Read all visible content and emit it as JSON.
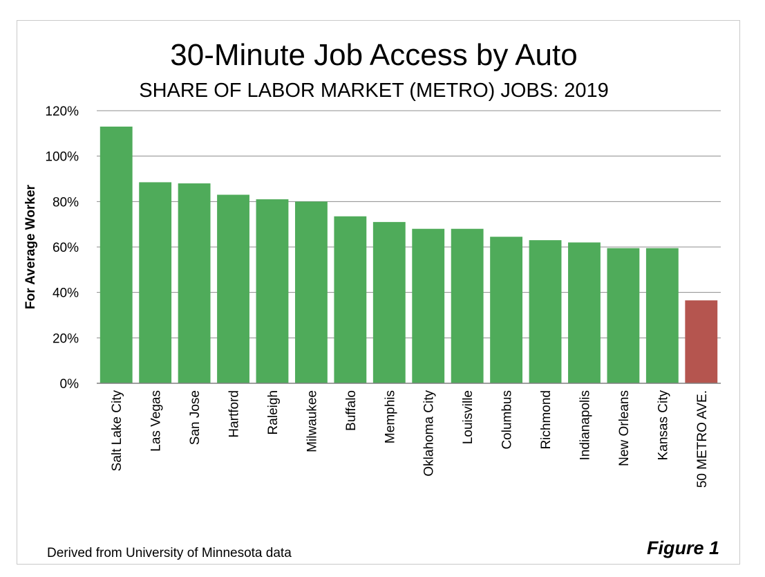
{
  "chart_data": {
    "type": "bar",
    "title": "30-Minute Job Access by Auto",
    "subtitle": "SHARE OF LABOR MARKET (METRO) JOBS: 2019",
    "ylabel": "For Average Worker",
    "xlabel": "",
    "ylim": [
      0,
      120
    ],
    "yticks": [
      0,
      20,
      40,
      60,
      80,
      100,
      120
    ],
    "ytick_labels": [
      "0%",
      "20%",
      "40%",
      "60%",
      "80%",
      "100%",
      "120%"
    ],
    "grid": true,
    "categories": [
      "Salt Lake City",
      "Las Vegas",
      "San Jose",
      "Hartford",
      "Raleigh",
      "Milwaukee",
      "Buffalo",
      "Memphis",
      "Oklahoma City",
      "Louisville",
      "Columbus",
      "Richmond",
      "Indianapolis",
      "New Orleans",
      "Kansas City",
      "50 METRO AVE."
    ],
    "values": [
      113,
      88.5,
      88,
      83,
      81,
      80,
      73.5,
      71,
      68,
      68,
      64.5,
      63,
      62,
      59.5,
      59.5,
      36.5
    ],
    "colors": {
      "metro": "#4fab5a",
      "average": "#b5554f",
      "grid": "#8c8c8c",
      "axis": "#7f7f7f"
    },
    "source_note": "Derived from University of Minnesota data",
    "figure_label": "Figure 1"
  }
}
